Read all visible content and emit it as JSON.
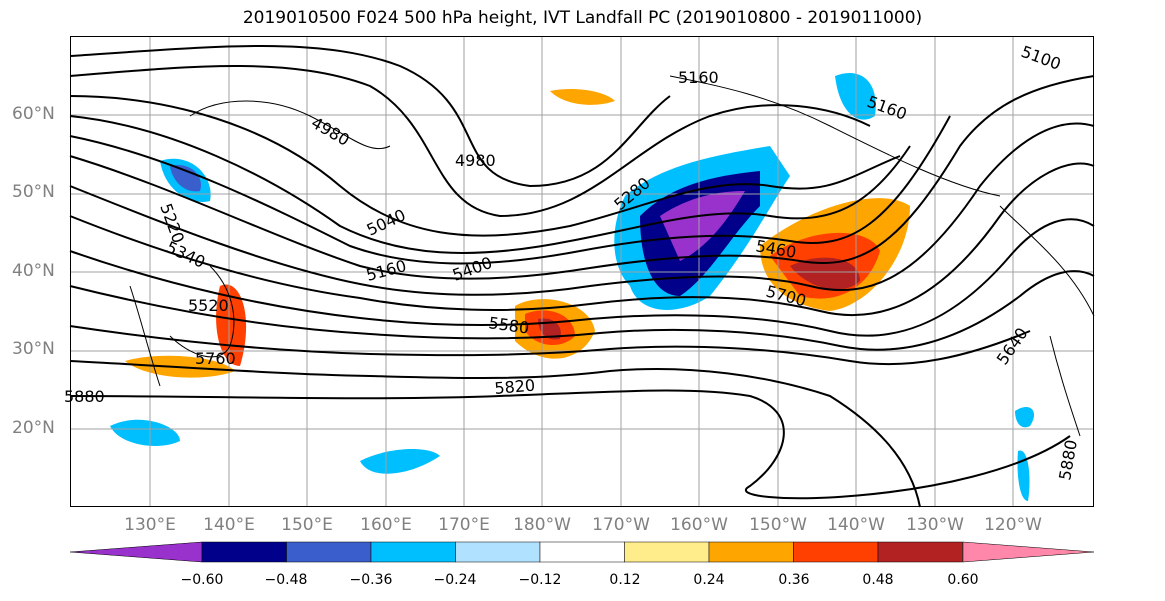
{
  "title": "2019010500 F024 500 hPa height, IVT Landfall PC (2019010800 - 2019011000)",
  "lat_labels": [
    "60°N",
    "50°N",
    "40°N",
    "30°N",
    "20°N"
  ],
  "lon_labels": [
    "130°E",
    "140°E",
    "150°E",
    "160°E",
    "170°E",
    "180°W",
    "170°W",
    "160°W",
    "150°W",
    "140°W",
    "130°W",
    "120°W"
  ],
  "contour_labels": [
    "5100",
    "5160",
    "5160",
    "5220",
    "4980",
    "4980",
    "5040",
    "5160",
    "5280",
    "5340",
    "5400",
    "5460",
    "5520",
    "5580",
    "5700",
    "5640",
    "5760",
    "5820",
    "5880",
    "5880"
  ],
  "colorbar": {
    "ticks": [
      "−0.60",
      "−0.48",
      "−0.36",
      "−0.24",
      "−0.12",
      "0.12",
      "0.24",
      "0.36",
      "0.48",
      "0.60"
    ],
    "colors": [
      "#9932cc",
      "#00008b",
      "#3a5fcd",
      "#00bfff",
      "#b0e2ff",
      "#ffffff",
      "#ffec8b",
      "#ffa500",
      "#ff4000",
      "#b22222",
      "#ff88aa"
    ]
  }
}
